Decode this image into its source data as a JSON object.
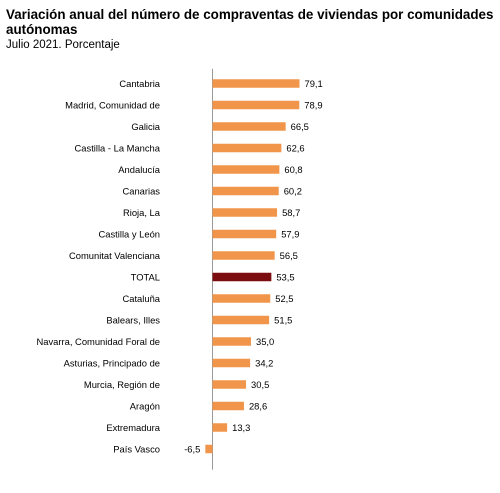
{
  "title": "Variación anual del número de compraventas de viviendas por comunidades autónomas",
  "subtitle": "Julio 2021. Porcentaje",
  "chart_data": {
    "type": "bar",
    "orientation": "horizontal",
    "categories": [
      "Cantabria",
      "Madrid, Comunidad de",
      "Galicia",
      "Castilla - La Mancha",
      "Andalucía",
      "Canarias",
      "Rioja, La",
      "Castilla y León",
      "Comunitat Valenciana",
      "TOTAL",
      "Cataluña",
      "Balears, Illes",
      "Navarra, Comunidad Foral de",
      "Asturias, Principado de",
      "Murcia, Región de",
      "Aragón",
      "Extremadura",
      "País Vasco"
    ],
    "values": [
      79.1,
      78.9,
      66.5,
      62.6,
      60.8,
      60.2,
      58.7,
      57.9,
      56.5,
      53.5,
      52.5,
      51.5,
      35.0,
      34.2,
      30.5,
      28.6,
      13.3,
      -6.5
    ],
    "value_labels": [
      "79,1",
      "78,9",
      "66,5",
      "62,6",
      "60,8",
      "60,2",
      "58,7",
      "57,9",
      "56,5",
      "53,5",
      "52,5",
      "51,5",
      "35,0",
      "34,2",
      "30,5",
      "28,6",
      "13,3",
      "-6,5"
    ],
    "highlight_category": "TOTAL",
    "colors": {
      "bar": "#F0954A",
      "highlight": "#7B0C10",
      "axis": "#9A9A9A"
    },
    "title": "Variación anual del número de compraventas de viviendas por comunidades autónomas",
    "subtitle": "Julio 2021. Porcentaje",
    "xlabel": "",
    "ylabel": "",
    "grid": false,
    "legend": "none"
  }
}
